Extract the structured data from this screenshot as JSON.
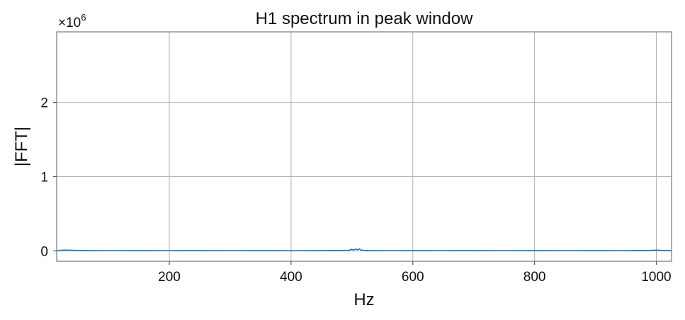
{
  "chart_data": {
    "type": "line",
    "title": "H1 spectrum in peak window",
    "xlabel": "Hz",
    "ylabel": "|FFT|",
    "y_scale_prefix": "×10",
    "y_scale_exponent": "6",
    "xlim": [
      15,
      1025
    ],
    "ylim": [
      -0.14,
      2.95
    ],
    "x_ticks": [
      200,
      400,
      600,
      800,
      1000
    ],
    "x_tick_labels": [
      "200",
      "400",
      "600",
      "800",
      "1000"
    ],
    "y_ticks": [
      0,
      1,
      2
    ],
    "y_tick_labels": [
      "0",
      "1",
      "2"
    ],
    "grid": true,
    "series": [
      {
        "color": "#1f77b4",
        "x": [
          15,
          30,
          60,
          100,
          150,
          200,
          250,
          300,
          350,
          400,
          450,
          480,
          495,
          500,
          503,
          506,
          509,
          512,
          515,
          520,
          530,
          560,
          600,
          650,
          700,
          750,
          800,
          850,
          900,
          950,
          990,
          1000,
          1010,
          1025
        ],
        "y": [
          0.005,
          0.01,
          0.004,
          0.003,
          0.004,
          0.003,
          0.004,
          0.003,
          0.004,
          0.003,
          0.004,
          0.005,
          0.008,
          0.02,
          0.01,
          0.025,
          0.012,
          0.028,
          0.01,
          0.006,
          0.004,
          0.003,
          0.004,
          0.003,
          0.004,
          0.003,
          0.004,
          0.003,
          0.004,
          0.003,
          0.006,
          0.01,
          0.006,
          0.004
        ]
      }
    ]
  }
}
